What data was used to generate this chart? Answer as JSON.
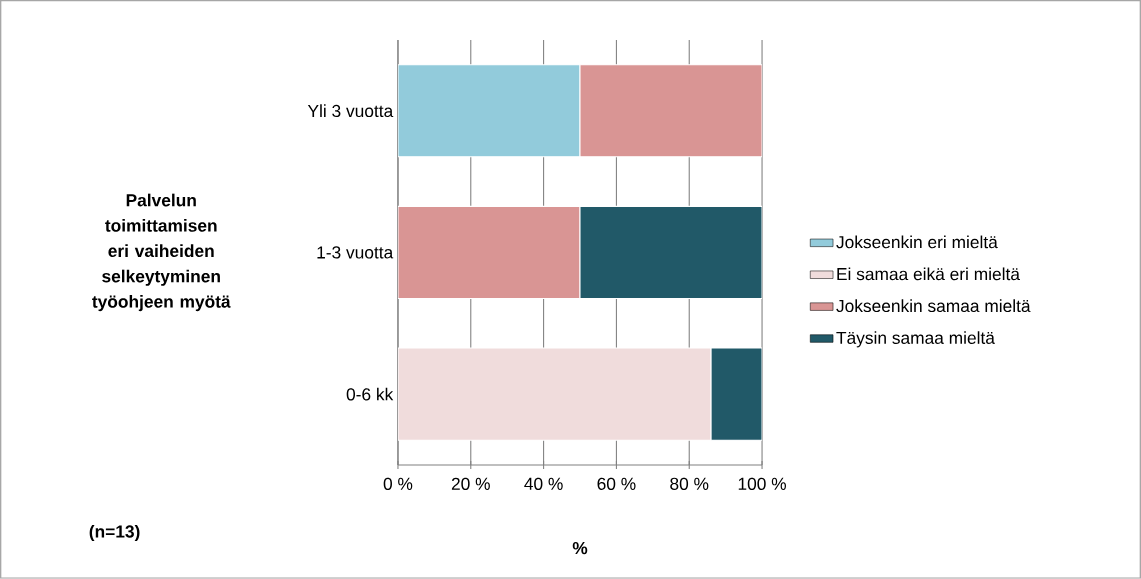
{
  "chart_data": {
    "type": "bar",
    "orientation": "horizontal",
    "stacked": true,
    "ylabel": "Palvelun toimittamisen eri vaiheiden selkeytyminen työohjeen myötä",
    "xlabel": "%",
    "annotations": [
      "(n=13)"
    ],
    "categories": [
      "Yli 3 vuotta",
      "1-3 vuotta",
      "0-6 kk"
    ],
    "series": [
      {
        "name": "Jokseenkin eri mieltä",
        "color": "#92cbdb",
        "values": [
          50,
          null,
          null
        ]
      },
      {
        "name": "Ei samaa eikä eri mieltä",
        "color": "#f0dcdc",
        "values": [
          null,
          null,
          86
        ]
      },
      {
        "name": "Jokseenkin samaa mieltä",
        "color": "#d99594",
        "values": [
          50,
          50,
          null
        ]
      },
      {
        "name": "Täysin samaa mieltä",
        "color": "#215968",
        "values": [
          null,
          50,
          14
        ]
      }
    ],
    "xlim": [
      0,
      100
    ],
    "xticks": [
      {
        "value": 0,
        "label": "0 %"
      },
      {
        "value": 20,
        "label": "20 %"
      },
      {
        "value": 40,
        "label": "40 %"
      },
      {
        "value": 60,
        "label": "60 %"
      },
      {
        "value": 80,
        "label": "80 %"
      },
      {
        "value": 100,
        "label": "100 %"
      }
    ],
    "grid": "x",
    "legend": "right"
  }
}
